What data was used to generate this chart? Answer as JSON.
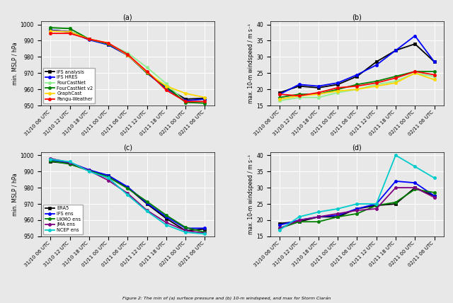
{
  "x_labels": [
    "31/10 06 UTC",
    "31/10 12 UTC",
    "31/10 18 UTC",
    "01/11 00 UTC",
    "01/11 06 UTC",
    "01/11 12 UTC",
    "01/11 18 UTC",
    "02/11 00 UTC",
    "02/11 06 UTC"
  ],
  "panel_a": {
    "title": "(a)",
    "ylabel": "min. MSLP / hPa",
    "ylim": [
      950,
      1002
    ],
    "yticks": [
      950,
      960,
      970,
      980,
      990,
      1000
    ],
    "legend_loc": "lower left",
    "series": {
      "IFS analysis": {
        "color": "#000000",
        "marker": "s",
        "lw": 1.3,
        "data": [
          996.5,
          995.5,
          991.0,
          987.5,
          981.0,
          970.5,
          961.0,
          954.0,
          954.5
        ]
      },
      "IFS HRES": {
        "color": "#0000ff",
        "marker": "o",
        "lw": 1.3,
        "data": [
          996.5,
          995.5,
          990.5,
          987.5,
          981.0,
          970.0,
          960.5,
          953.0,
          954.0
        ]
      },
      "FourCastNet": {
        "color": "#90ee90",
        "marker": "o",
        "lw": 1.3,
        "data": [
          998.0,
          997.5,
          991.0,
          988.0,
          982.5,
          973.5,
          963.5,
          952.0,
          951.5
        ]
      },
      "FourCastNet v2": {
        "color": "#008000",
        "marker": "o",
        "lw": 1.3,
        "data": [
          998.0,
          997.5,
          991.0,
          988.0,
          981.5,
          970.0,
          961.5,
          952.0,
          951.5
        ]
      },
      "GraphCast": {
        "color": "#ffd700",
        "marker": "o",
        "lw": 1.3,
        "data": [
          996.0,
          995.5,
          991.0,
          988.5,
          981.0,
          970.5,
          962.0,
          957.5,
          955.0
        ]
      },
      "Pangu-Weather": {
        "color": "#ff0000",
        "marker": "o",
        "lw": 1.3,
        "data": [
          994.5,
          994.5,
          991.0,
          988.5,
          981.5,
          971.0,
          959.5,
          952.5,
          952.5
        ]
      }
    }
  },
  "panel_b": {
    "title": "(b)",
    "ylabel": "max. 10-m windspeed / m s⁻¹",
    "ylim": [
      15,
      41
    ],
    "yticks": [
      15,
      20,
      25,
      30,
      35,
      40
    ],
    "legend_loc": null,
    "series": {
      "IFS analysis": {
        "color": "#000000",
        "marker": "s",
        "lw": 1.3,
        "data": [
          19.0,
          21.0,
          20.5,
          21.5,
          24.0,
          28.5,
          32.0,
          34.0,
          28.5
        ]
      },
      "IFS HRES": {
        "color": "#0000ff",
        "marker": "o",
        "lw": 1.3,
        "data": [
          18.5,
          21.5,
          21.0,
          22.0,
          24.5,
          27.5,
          32.0,
          36.5,
          28.5
        ]
      },
      "FourCastNet": {
        "color": "#90ee90",
        "marker": "o",
        "lw": 1.3,
        "data": [
          16.5,
          17.5,
          17.5,
          19.0,
          20.0,
          21.5,
          22.5,
          25.0,
          24.0
        ]
      },
      "FourCastNet v2": {
        "color": "#008000",
        "marker": "o",
        "lw": 1.3,
        "data": [
          17.5,
          18.5,
          18.5,
          20.0,
          21.5,
          22.5,
          24.0,
          25.5,
          25.5
        ]
      },
      "GraphCast": {
        "color": "#ffd700",
        "marker": "o",
        "lw": 1.3,
        "data": [
          17.0,
          18.0,
          18.5,
          19.5,
          20.0,
          21.0,
          22.0,
          25.0,
          23.0
        ]
      },
      "Pangu-Weather": {
        "color": "#ff0000",
        "marker": "o",
        "lw": 1.3,
        "data": [
          18.5,
          18.0,
          19.0,
          20.5,
          21.0,
          22.0,
          23.5,
          25.5,
          24.5
        ]
      }
    }
  },
  "panel_c": {
    "title": "(c)",
    "ylabel": "min. MSLP / hPa",
    "ylim": [
      950,
      1002
    ],
    "yticks": [
      950,
      960,
      970,
      980,
      990,
      1000
    ],
    "legend_loc": "lower left",
    "series": {
      "ERA5": {
        "color": "#000000",
        "marker": "s",
        "lw": 1.3,
        "data": [
          996.0,
          995.0,
          990.5,
          987.5,
          980.0,
          970.0,
          961.0,
          953.5,
          954.5
        ]
      },
      "IFS ens": {
        "color": "#0000ff",
        "marker": "o",
        "lw": 1.3,
        "data": [
          997.0,
          995.5,
          991.0,
          987.5,
          980.5,
          970.5,
          962.0,
          955.0,
          955.0
        ]
      },
      "UKMO ens": {
        "color": "#008000",
        "marker": "o",
        "lw": 1.3,
        "data": [
          996.5,
          994.5,
          990.5,
          986.5,
          979.5,
          971.5,
          963.0,
          955.5,
          952.5
        ]
      },
      "JMA ens": {
        "color": "#800080",
        "marker": "o",
        "lw": 1.3,
        "data": [
          998.0,
          995.5,
          990.5,
          984.5,
          976.5,
          966.0,
          958.5,
          953.5,
          952.0
        ]
      },
      "NCEP ens": {
        "color": "#00cccc",
        "marker": "o",
        "lw": 1.3,
        "data": [
          997.5,
          996.0,
          990.0,
          986.0,
          975.5,
          965.5,
          957.0,
          952.5,
          951.5
        ]
      }
    }
  },
  "panel_d": {
    "title": "(d)",
    "ylabel": "max. 10-m windspeed / m s⁻¹",
    "ylim": [
      15,
      41
    ],
    "yticks": [
      15,
      20,
      25,
      30,
      35,
      40
    ],
    "legend_loc": null,
    "series": {
      "ERA5": {
        "color": "#000000",
        "marker": "s",
        "lw": 1.3,
        "data": [
          19.0,
          19.5,
          21.0,
          21.0,
          23.5,
          24.5,
          25.0,
          30.0,
          27.5
        ]
      },
      "IFS ens": {
        "color": "#0000ff",
        "marker": "o",
        "lw": 1.3,
        "data": [
          18.5,
          20.0,
          21.0,
          21.5,
          23.5,
          25.0,
          32.0,
          31.5,
          27.5
        ]
      },
      "UKMO ens": {
        "color": "#008000",
        "marker": "o",
        "lw": 1.3,
        "data": [
          17.5,
          19.5,
          19.5,
          21.0,
          22.0,
          24.5,
          25.5,
          29.5,
          28.5
        ]
      },
      "JMA ens": {
        "color": "#800080",
        "marker": "o",
        "lw": 1.3,
        "data": [
          17.5,
          20.0,
          21.0,
          22.0,
          23.0,
          23.5,
          30.0,
          30.0,
          27.0
        ]
      },
      "NCEP ens": {
        "color": "#00cccc",
        "marker": "o",
        "lw": 1.3,
        "data": [
          17.0,
          21.0,
          22.5,
          23.5,
          25.0,
          25.0,
          40.0,
          36.5,
          33.0
        ]
      }
    }
  },
  "caption": "Figure 2: The min of (a) surface pressure and (b) 10-m windspeed, and max for Storm Ciarán",
  "background_color": "#e8e8e8",
  "grid_color": "white",
  "grid_lw": 0.7
}
